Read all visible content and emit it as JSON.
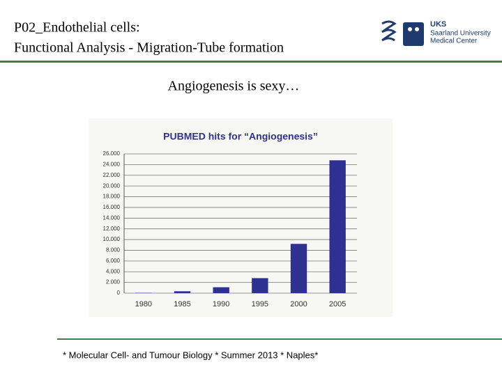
{
  "header": {
    "title_line1": "P02_Endothelial cells:",
    "title_line2": "Functional Analysis - Migration-Tube formation",
    "logo_abbr": "UKS",
    "logo_line1": "Saarland University",
    "logo_line2": "Medical Center"
  },
  "subtitle": "Angiogenesis is sexy…",
  "footer": "* Molecular Cell- and Tumour Biology * Summer 2013 * Naples*",
  "chart_data": {
    "type": "bar",
    "title": "PUBMED hits for “Angiogenesis”",
    "categories": [
      "1980",
      "1985",
      "1990",
      "1995",
      "2000",
      "2005"
    ],
    "values": [
      50,
      350,
      1100,
      2800,
      9200,
      24800
    ],
    "color": "#2e3192",
    "ylim": [
      0,
      26000
    ],
    "yticks": [
      0,
      {
        "value": 2000,
        "label": "2.000"
      },
      {
        "value": 4000,
        "label": "4.000"
      },
      {
        "value": 6000,
        "label": "6.000"
      },
      {
        "value": 8000,
        "label": "8.000"
      },
      {
        "value": 10000,
        "label": "10.000"
      },
      {
        "value": 12000,
        "label": "12.000"
      },
      {
        "value": 14000,
        "label": "14.000"
      },
      {
        "value": 16000,
        "label": "16.000"
      },
      {
        "value": 18000,
        "label": "18.000"
      },
      {
        "value": 20000,
        "label": "20.000"
      },
      {
        "value": 22000,
        "label": "22.000"
      },
      {
        "value": 24000,
        "label": "24.000"
      },
      {
        "value": 26000,
        "label": "26.000"
      }
    ],
    "grid": true
  }
}
